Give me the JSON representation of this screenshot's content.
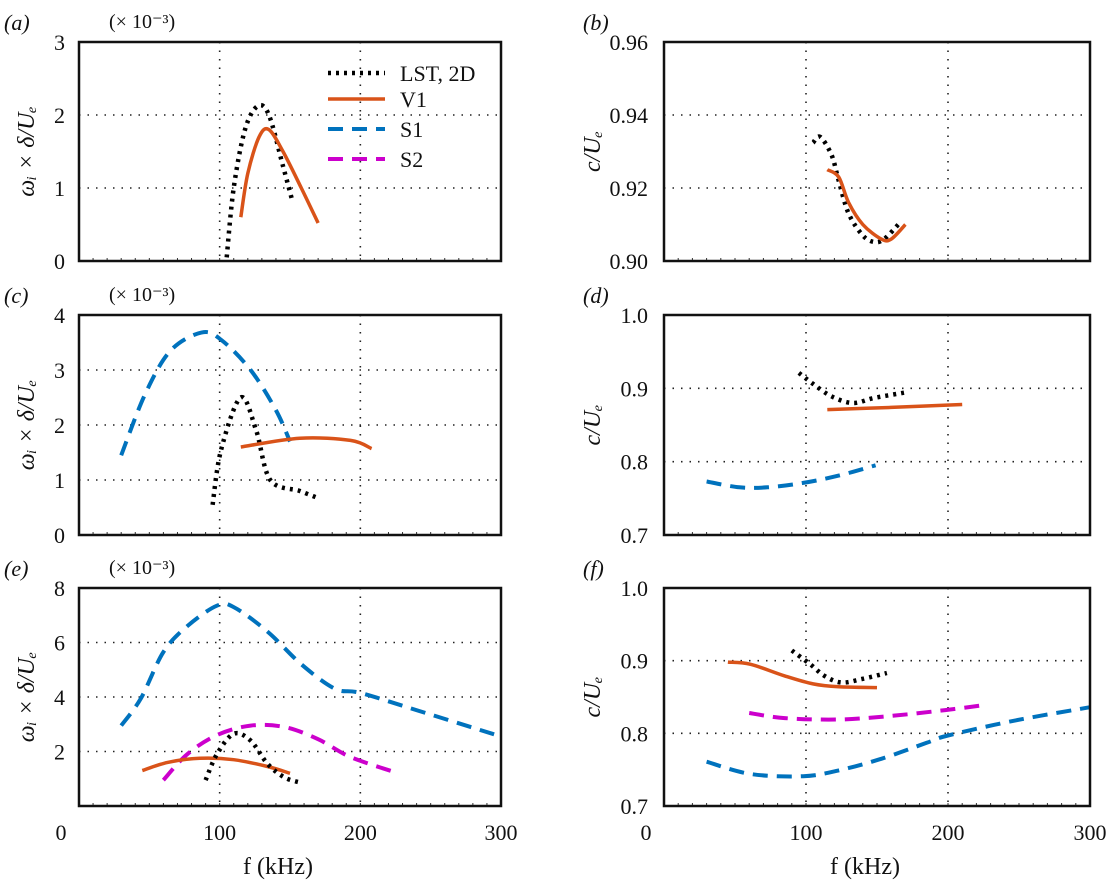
{
  "colors": {
    "LST": "#000000",
    "V1": "#d95319",
    "S1": "#0072bd",
    "S2": "#cc00cc"
  },
  "legend": [
    {
      "name": "LST, 2D",
      "key": "LST",
      "style": "dotted"
    },
    {
      "name": "V1",
      "key": "V1",
      "style": "solid"
    },
    {
      "name": "S1",
      "key": "S1",
      "style": "dashed"
    },
    {
      "name": "S2",
      "key": "S2",
      "style": "dashed"
    }
  ],
  "chart_data": [
    {
      "type": "line",
      "panel": "(a)",
      "multiplier": "(× 10⁻³)",
      "ylabel": "ωᵢ × δ/Uₑ",
      "xlabel": "",
      "xlim": [
        0,
        300
      ],
      "ylim": [
        0,
        3
      ],
      "xticks": [
        0,
        100,
        200,
        300
      ],
      "xtick_labels": [],
      "yticks": [
        0,
        1,
        2,
        3
      ],
      "ytick_labels": [
        "0",
        "1",
        "2",
        "3"
      ],
      "grid": true,
      "legend_position": "top-right",
      "series": [
        {
          "name": "LST, 2D",
          "key": "LST",
          "x": [
            105,
            110,
            118,
            127,
            135,
            145,
            152
          ],
          "y": [
            0.05,
            1.0,
            1.8,
            2.12,
            2.0,
            1.3,
            0.8
          ]
        },
        {
          "name": "V1",
          "key": "V1",
          "x": [
            115,
            120,
            128,
            135,
            145,
            158,
            170
          ],
          "y": [
            0.6,
            1.2,
            1.7,
            1.8,
            1.5,
            1.0,
            0.52
          ]
        }
      ]
    },
    {
      "type": "line",
      "panel": "(b)",
      "multiplier": "",
      "ylabel": "c/Uₑ",
      "xlabel": "",
      "xlim": [
        0,
        300
      ],
      "ylim": [
        0.9,
        0.96
      ],
      "xticks": [
        0,
        100,
        200,
        300
      ],
      "xtick_labels": [],
      "yticks": [
        0.9,
        0.92,
        0.94,
        0.96
      ],
      "ytick_labels": [
        "0.90",
        "0.92",
        "0.94",
        "0.96"
      ],
      "grid": true,
      "series": [
        {
          "name": "LST, 2D",
          "key": "LST",
          "x": [
            105,
            110,
            118,
            123,
            130,
            140,
            148,
            155,
            165
          ],
          "y": [
            0.9324,
            0.934,
            0.929,
            0.922,
            0.913,
            0.907,
            0.9052,
            0.906,
            0.91
          ]
        },
        {
          "name": "V1",
          "key": "V1",
          "x": [
            115,
            123,
            130,
            140,
            153,
            160,
            170
          ],
          "y": [
            0.925,
            0.923,
            0.916,
            0.91,
            0.906,
            0.906,
            0.91
          ]
        }
      ]
    },
    {
      "type": "line",
      "panel": "(c)",
      "multiplier": "(× 10⁻³)",
      "ylabel": "ωᵢ × δ/Uₑ",
      "xlabel": "",
      "xlim": [
        0,
        300
      ],
      "ylim": [
        0,
        4
      ],
      "xticks": [
        0,
        100,
        200,
        300
      ],
      "xtick_labels": [],
      "yticks": [
        0,
        1,
        2,
        3,
        4
      ],
      "ytick_labels": [
        "0",
        "1",
        "2",
        "3",
        "4"
      ],
      "grid": true,
      "series": [
        {
          "name": "S1",
          "key": "S1",
          "x": [
            30,
            47,
            65,
            87,
            101,
            122,
            140,
            150
          ],
          "y": [
            1.45,
            2.56,
            3.35,
            3.68,
            3.55,
            3.0,
            2.27,
            1.7
          ]
        },
        {
          "name": "LST, 2D",
          "key": "LST",
          "x": [
            95,
            101,
            115,
            126,
            136,
            157,
            170
          ],
          "y": [
            0.55,
            1.55,
            2.5,
            1.9,
            1.0,
            0.8,
            0.67
          ]
        },
        {
          "name": "V1",
          "key": "V1",
          "x": [
            115,
            157,
            193,
            208
          ],
          "y": [
            1.6,
            1.76,
            1.72,
            1.57
          ]
        }
      ]
    },
    {
      "type": "line",
      "panel": "(d)",
      "multiplier": "",
      "ylabel": "c/Uₑ",
      "xlabel": "",
      "xlim": [
        0,
        300
      ],
      "ylim": [
        0.7,
        1.0
      ],
      "xticks": [
        0,
        100,
        200,
        300
      ],
      "xtick_labels": [],
      "yticks": [
        0.7,
        0.8,
        0.9,
        1.0
      ],
      "ytick_labels": [
        "0.7",
        "0.8",
        "0.9",
        "1.0"
      ],
      "grid": true,
      "series": [
        {
          "name": "LST, 2D",
          "key": "LST",
          "x": [
            95,
            105,
            118,
            133,
            148,
            169
          ],
          "y": [
            0.921,
            0.906,
            0.889,
            0.88,
            0.887,
            0.894
          ]
        },
        {
          "name": "V1",
          "key": "V1",
          "x": [
            115,
            160,
            210
          ],
          "y": [
            0.871,
            0.874,
            0.878
          ]
        },
        {
          "name": "S1",
          "key": "S1",
          "x": [
            30,
            53,
            73,
            98,
            123,
            149
          ],
          "y": [
            0.773,
            0.765,
            0.765,
            0.771,
            0.781,
            0.795
          ]
        }
      ]
    },
    {
      "type": "line",
      "panel": "(e)",
      "multiplier": "(× 10⁻³)",
      "ylabel": "ωᵢ × δ/Uₑ",
      "xlabel": "f (kHz)",
      "xlim": [
        0,
        300
      ],
      "ylim": [
        0,
        8
      ],
      "xticks": [
        0,
        100,
        200,
        300
      ],
      "xtick_labels": [
        "0",
        "100",
        "200",
        "300"
      ],
      "yticks": [
        2,
        4,
        6,
        8
      ],
      "ytick_labels": [
        "2",
        "4",
        "6",
        "8"
      ],
      "grid": true,
      "series": [
        {
          "name": "S1",
          "key": "S1",
          "x": [
            30,
            44,
            60,
            77,
            98,
            110,
            134,
            158,
            182,
            200,
            241,
            300
          ],
          "y": [
            2.95,
            3.95,
            5.65,
            6.6,
            7.35,
            7.3,
            6.4,
            5.2,
            4.3,
            4.15,
            3.5,
            2.55
          ]
        },
        {
          "name": "S2",
          "key": "S2",
          "x": [
            60,
            77,
            98,
            122,
            146,
            170,
            193,
            227
          ],
          "y": [
            0.95,
            1.9,
            2.6,
            2.95,
            2.9,
            2.45,
            1.8,
            1.2
          ]
        },
        {
          "name": "V1",
          "key": "V1",
          "x": [
            45,
            63,
            86,
            110,
            134,
            150
          ],
          "y": [
            1.3,
            1.6,
            1.75,
            1.7,
            1.45,
            1.2
          ]
        },
        {
          "name": "LST, 2D",
          "key": "LST",
          "x": [
            90,
            98,
            110,
            122,
            134,
            146,
            158
          ],
          "y": [
            0.95,
            1.9,
            2.65,
            2.4,
            1.55,
            1.05,
            0.85
          ]
        }
      ]
    },
    {
      "type": "line",
      "panel": "(f)",
      "multiplier": "",
      "ylabel": "c/Uₑ",
      "xlabel": "f (kHz)",
      "xlim": [
        0,
        300
      ],
      "ylim": [
        0.7,
        1.0
      ],
      "xticks": [
        0,
        100,
        200,
        300
      ],
      "xtick_labels": [
        "0",
        "100",
        "200",
        "300"
      ],
      "yticks": [
        0.7,
        0.8,
        0.9,
        1.0
      ],
      "ytick_labels": [
        "0.7",
        "0.8",
        "0.9",
        "1.0"
      ],
      "grid": true,
      "series": [
        {
          "name": "LST, 2D",
          "key": "LST",
          "x": [
            90,
            103,
            113,
            125,
            140,
            157
          ],
          "y": [
            0.914,
            0.895,
            0.879,
            0.87,
            0.875,
            0.883
          ]
        },
        {
          "name": "V1",
          "key": "V1",
          "x": [
            45,
            61,
            85,
            105,
            123,
            150
          ],
          "y": [
            0.898,
            0.895,
            0.879,
            0.868,
            0.864,
            0.863
          ]
        },
        {
          "name": "S2",
          "key": "S2",
          "x": [
            60,
            85,
            123,
            160,
            198,
            226
          ],
          "y": [
            0.828,
            0.821,
            0.819,
            0.824,
            0.832,
            0.839
          ]
        },
        {
          "name": "S1",
          "key": "S1",
          "x": [
            30,
            61,
            98,
            123,
            153,
            185,
            200,
            248,
            300
          ],
          "y": [
            0.761,
            0.744,
            0.741,
            0.749,
            0.765,
            0.787,
            0.797,
            0.818,
            0.836
          ]
        }
      ]
    }
  ]
}
